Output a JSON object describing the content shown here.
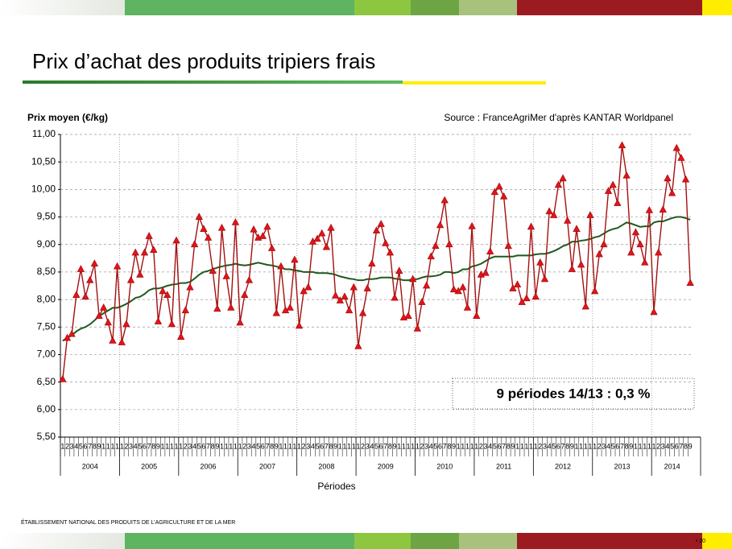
{
  "header": {
    "title": "Prix d’achat des produits tripiers frais"
  },
  "footer": {
    "text": "ÉTABLISSEMENT NATIONAL DES PRODUITS DE L’AGRICULTURE ET DE LA MER",
    "page": "• 20"
  },
  "chart_data": {
    "type": "line",
    "y_label": "Prix moyen (€/kg)",
    "source": "Source : FranceAgriMer d'après KANTAR Worldpanel",
    "x_label": "Périodes",
    "annotation": "9 périodes 14/13 :  0,3 %",
    "years": [
      "2004",
      "2005",
      "2006",
      "2007",
      "2008",
      "2009",
      "2010",
      "2011",
      "2012",
      "2013",
      "2014"
    ],
    "periods_per_year": 13,
    "categories": [
      "1",
      "2",
      "3",
      "4",
      "5",
      "6",
      "7",
      "8",
      "9",
      "1",
      "1",
      "1",
      "1",
      "1",
      "2",
      "3",
      "4",
      "5",
      "6",
      "7",
      "8",
      "9",
      "1",
      "1",
      "1",
      "1",
      "1",
      "2",
      "3",
      "4",
      "5",
      "6",
      "7",
      "8",
      "9",
      "1",
      "1",
      "1",
      "1",
      "1",
      "2",
      "3",
      "4",
      "5",
      "6",
      "7",
      "8",
      "9",
      "1",
      "1",
      "1",
      "1",
      "1",
      "2",
      "3",
      "4",
      "5",
      "6",
      "7",
      "8",
      "9",
      "1",
      "1",
      "1",
      "1",
      "1",
      "2",
      "3",
      "4",
      "5",
      "6",
      "7",
      "8",
      "9",
      "1",
      "1",
      "1",
      "1",
      "1",
      "2",
      "3",
      "4",
      "5",
      "6",
      "7",
      "8",
      "9",
      "1",
      "1",
      "1",
      "1",
      "1",
      "2",
      "3",
      "4",
      "5",
      "6",
      "7",
      "8",
      "9",
      "1",
      "1",
      "1",
      "1",
      "1",
      "2",
      "3",
      "4",
      "5",
      "6",
      "7",
      "8",
      "9",
      "1",
      "1",
      "1",
      "1",
      "1",
      "2",
      "3",
      "4",
      "5",
      "6",
      "7",
      "8",
      "9",
      "1",
      "1",
      "1",
      "1",
      "1",
      "2",
      "3",
      "4",
      "5",
      "6",
      "7",
      "8",
      "9"
    ],
    "series": [
      {
        "color": "#a50f0f",
        "marker_color": "#e8121b",
        "values": [
          6.55,
          7.3,
          7.37,
          8.08,
          8.55,
          8.05,
          8.35,
          8.65,
          7.7,
          7.85,
          7.58,
          7.25,
          8.6,
          7.22,
          7.55,
          8.35,
          8.85,
          8.45,
          8.85,
          9.15,
          8.9,
          7.6,
          8.15,
          8.08,
          7.55,
          9.07,
          7.32,
          7.8,
          8.22,
          9.0,
          9.5,
          9.28,
          9.12,
          8.52,
          7.83,
          9.3,
          8.42,
          7.85,
          9.4,
          7.58,
          8.08,
          8.35,
          9.27,
          9.12,
          9.15,
          9.32,
          8.93,
          7.75,
          8.6,
          7.8,
          7.85,
          8.72,
          7.52,
          8.15,
          8.22,
          9.05,
          9.1,
          9.2,
          8.95,
          9.3,
          8.07,
          7.98,
          8.05,
          7.8,
          8.22,
          7.15,
          7.75,
          8.2,
          8.65,
          9.25,
          9.37,
          9.02,
          8.85,
          8.03,
          8.52,
          7.67,
          7.7,
          8.37,
          7.47,
          7.95,
          8.25,
          8.78,
          8.97,
          9.35,
          9.8,
          9.0,
          8.18,
          8.15,
          8.22,
          7.85,
          9.33,
          7.7,
          8.45,
          8.48,
          8.87,
          9.95,
          10.05,
          9.87,
          8.97,
          8.2,
          8.27,
          7.95,
          8.02,
          9.32,
          8.05,
          8.67,
          8.37,
          9.6,
          9.53,
          10.08,
          10.2,
          9.43,
          8.55,
          9.28,
          8.63,
          7.87,
          9.53,
          8.15,
          8.82,
          9.0,
          9.97,
          10.08,
          9.75,
          10.8,
          10.25,
          8.85,
          9.22,
          9.0,
          8.67,
          9.62,
          7.77,
          8.85,
          9.63,
          10.2,
          9.93,
          10.75,
          10.57,
          10.18,
          8.3
        ]
      },
      {
        "color": "#1e5a1e",
        "values": [
          7.25,
          7.3,
          7.35,
          7.42,
          7.47,
          7.5,
          7.55,
          7.62,
          7.7,
          7.75,
          7.8,
          7.85,
          7.85,
          7.88,
          7.92,
          7.97,
          8.03,
          8.05,
          8.1,
          8.17,
          8.2,
          8.2,
          8.22,
          8.25,
          8.27,
          8.28,
          8.3,
          8.3,
          8.32,
          8.38,
          8.45,
          8.5,
          8.52,
          8.55,
          8.58,
          8.6,
          8.62,
          8.63,
          8.65,
          8.63,
          8.62,
          8.63,
          8.65,
          8.67,
          8.65,
          8.63,
          8.62,
          8.6,
          8.58,
          8.55,
          8.55,
          8.53,
          8.52,
          8.5,
          8.5,
          8.5,
          8.48,
          8.48,
          8.48,
          8.47,
          8.45,
          8.42,
          8.4,
          8.38,
          8.37,
          8.35,
          8.35,
          8.37,
          8.37,
          8.38,
          8.4,
          8.4,
          8.4,
          8.38,
          8.37,
          8.35,
          8.35,
          8.37,
          8.37,
          8.4,
          8.42,
          8.42,
          8.43,
          8.45,
          8.5,
          8.5,
          8.48,
          8.5,
          8.55,
          8.55,
          8.6,
          8.62,
          8.65,
          8.7,
          8.75,
          8.78,
          8.78,
          8.78,
          8.78,
          8.78,
          8.8,
          8.8,
          8.8,
          8.8,
          8.82,
          8.83,
          8.83,
          8.85,
          8.88,
          8.92,
          8.97,
          9.0,
          9.05,
          9.05,
          9.07,
          9.08,
          9.1,
          9.13,
          9.15,
          9.2,
          9.25,
          9.28,
          9.3,
          9.35,
          9.4,
          9.38,
          9.35,
          9.32,
          9.33,
          9.33,
          9.4,
          9.42,
          9.42,
          9.45,
          9.48,
          9.5,
          9.5,
          9.48,
          9.45
        ]
      }
    ],
    "ylim": [
      5.5,
      11
    ],
    "yticks": [
      {
        "value": 5.5,
        "label": "5,50"
      },
      {
        "value": 6,
        "label": "6,00"
      },
      {
        "value": 6.5,
        "label": "6,50"
      },
      {
        "value": 7,
        "label": "7,00"
      },
      {
        "value": 7.5,
        "label": "7,50"
      },
      {
        "value": 8,
        "label": "8,00"
      },
      {
        "value": 8.5,
        "label": "8,50"
      },
      {
        "value": 9,
        "label": "9,00"
      },
      {
        "value": 9.5,
        "label": "9,50"
      },
      {
        "value": 10,
        "label": "10,00"
      },
      {
        "value": 10.5,
        "label": "10,50"
      },
      {
        "value": 11,
        "label": "11,00"
      }
    ],
    "grid": true
  }
}
